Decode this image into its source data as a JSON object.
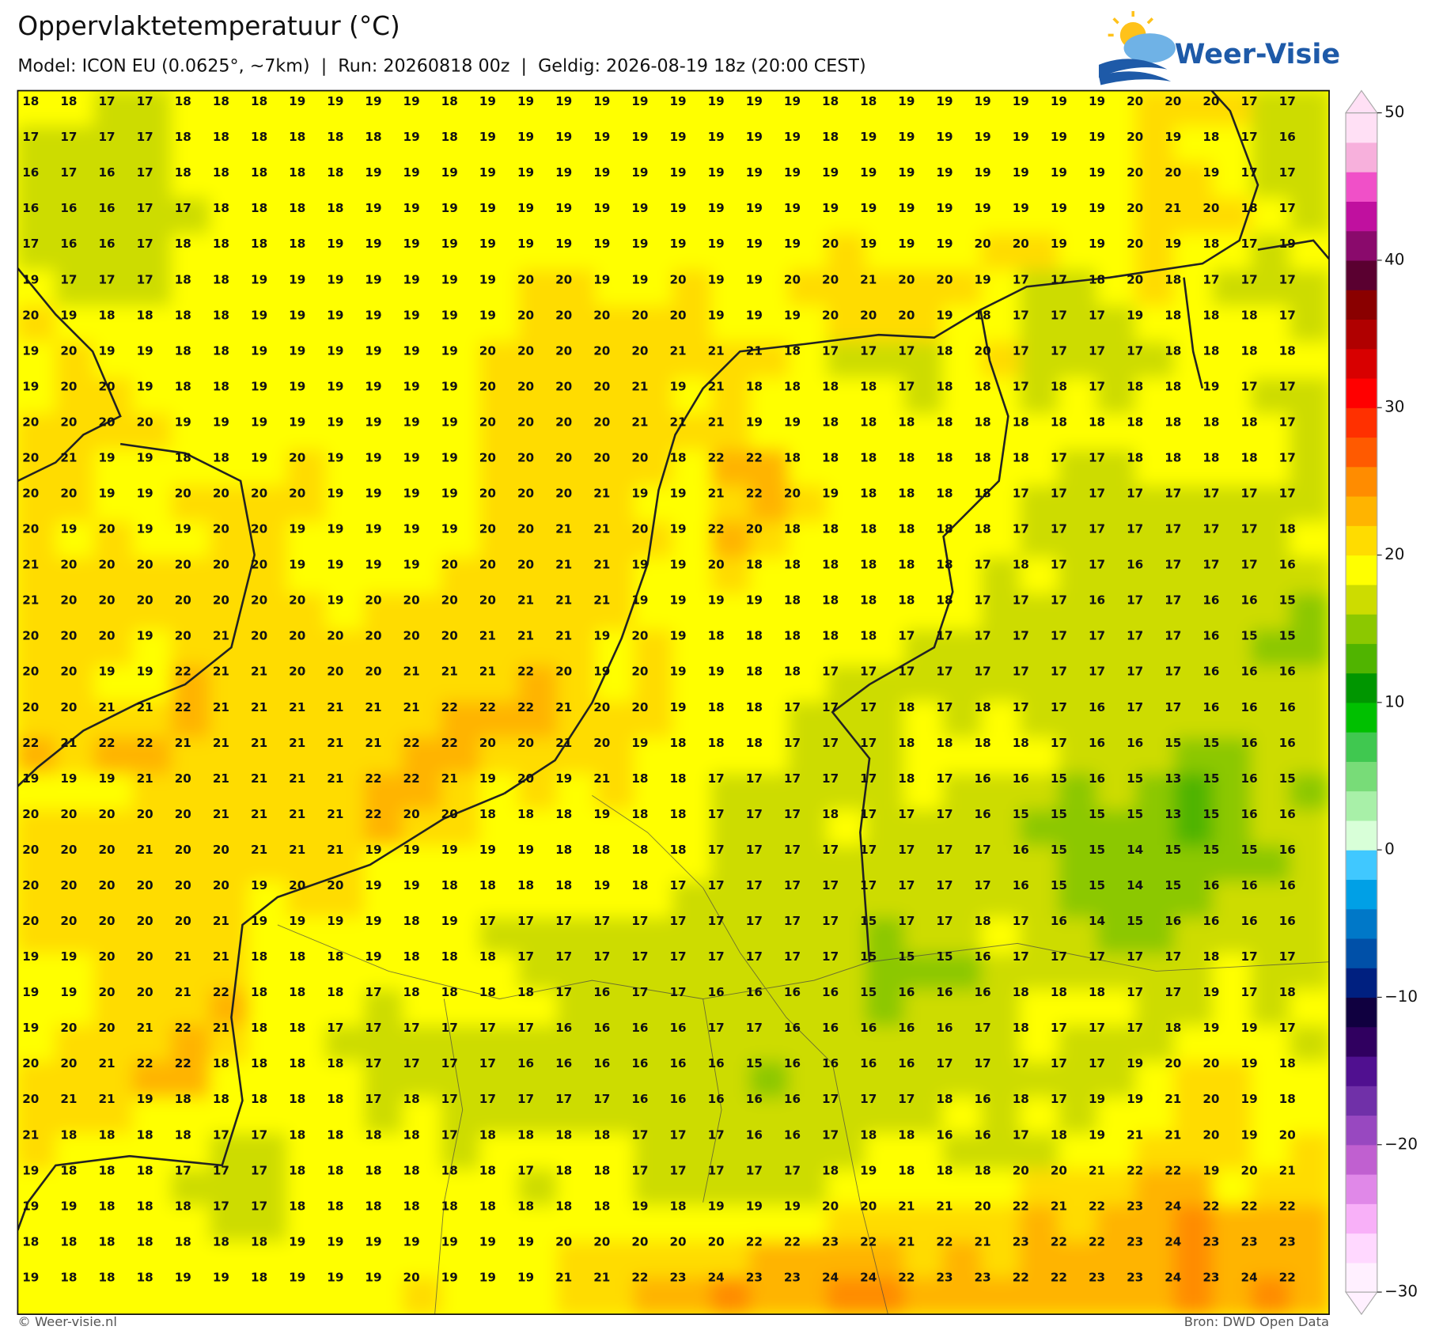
{
  "header": {
    "title": "Oppervlaktetemperatuur (°C)",
    "subtitle": "Model: ICON EU (0.0625°, ~7km)  |  Run: 20260818 00z  |  Geldig: 2026-08-19 18z (20:00 CEST)"
  },
  "logo": {
    "text": "Weer-Visie"
  },
  "map": {
    "grid": [
      [
        18,
        18,
        17,
        17,
        18,
        18,
        18,
        19,
        19,
        19,
        19,
        18,
        19,
        19,
        19,
        19,
        19,
        19,
        19,
        19,
        19,
        18,
        18,
        19,
        19,
        19,
        19,
        19,
        19,
        20,
        20,
        20,
        17,
        17
      ],
      [
        17,
        17,
        17,
        17,
        18,
        18,
        18,
        18,
        18,
        18,
        19,
        18,
        19,
        19,
        19,
        19,
        19,
        19,
        19,
        19,
        19,
        18,
        19,
        19,
        19,
        19,
        19,
        19,
        19,
        20,
        19,
        18,
        17,
        16
      ],
      [
        16,
        17,
        16,
        17,
        18,
        18,
        18,
        18,
        18,
        19,
        19,
        19,
        19,
        19,
        19,
        19,
        19,
        19,
        19,
        19,
        19,
        19,
        19,
        19,
        19,
        19,
        19,
        19,
        19,
        20,
        20,
        19,
        17,
        17
      ],
      [
        16,
        16,
        16,
        17,
        17,
        18,
        18,
        18,
        18,
        19,
        19,
        19,
        19,
        19,
        19,
        19,
        19,
        19,
        19,
        19,
        19,
        19,
        19,
        19,
        19,
        19,
        19,
        19,
        19,
        20,
        21,
        20,
        18,
        17
      ],
      [
        17,
        16,
        16,
        17,
        18,
        18,
        18,
        18,
        19,
        19,
        19,
        19,
        19,
        19,
        19,
        19,
        19,
        19,
        19,
        19,
        19,
        20,
        19,
        19,
        19,
        20,
        20,
        19,
        19,
        20,
        19,
        18,
        17,
        19
      ],
      [
        19,
        17,
        17,
        17,
        18,
        18,
        19,
        19,
        19,
        19,
        19,
        19,
        19,
        20,
        20,
        19,
        19,
        20,
        19,
        19,
        20,
        20,
        21,
        20,
        20,
        19,
        17,
        17,
        18,
        20,
        18,
        17,
        17,
        17
      ],
      [
        20,
        19,
        18,
        18,
        18,
        18,
        19,
        19,
        19,
        19,
        19,
        19,
        19,
        20,
        20,
        20,
        20,
        20,
        19,
        19,
        19,
        20,
        20,
        20,
        19,
        18,
        17,
        17,
        17,
        19,
        18,
        18,
        18,
        17
      ],
      [
        19,
        20,
        19,
        19,
        18,
        18,
        19,
        19,
        19,
        19,
        19,
        19,
        20,
        20,
        20,
        20,
        20,
        21,
        21,
        21,
        18,
        17,
        17,
        17,
        18,
        20,
        17,
        17,
        17,
        17,
        18,
        18,
        18,
        18
      ],
      [
        19,
        20,
        20,
        19,
        18,
        18,
        19,
        19,
        19,
        19,
        19,
        19,
        20,
        20,
        20,
        20,
        21,
        19,
        21,
        18,
        18,
        18,
        18,
        17,
        18,
        18,
        17,
        18,
        17,
        18,
        18,
        19,
        17,
        17
      ],
      [
        20,
        20,
        20,
        20,
        19,
        19,
        19,
        19,
        19,
        19,
        19,
        19,
        20,
        20,
        20,
        20,
        21,
        21,
        21,
        19,
        19,
        18,
        18,
        18,
        18,
        18,
        18,
        18,
        18,
        18,
        18,
        18,
        18,
        17
      ],
      [
        20,
        21,
        19,
        19,
        18,
        18,
        19,
        20,
        19,
        19,
        19,
        19,
        20,
        20,
        20,
        20,
        20,
        18,
        22,
        22,
        18,
        18,
        18,
        18,
        18,
        18,
        18,
        17,
        17,
        18,
        18,
        18,
        18,
        17
      ],
      [
        20,
        20,
        19,
        19,
        20,
        20,
        20,
        20,
        19,
        19,
        19,
        19,
        20,
        20,
        20,
        21,
        19,
        19,
        21,
        22,
        20,
        19,
        18,
        18,
        18,
        18,
        17,
        17,
        17,
        17,
        17,
        17,
        17,
        17
      ],
      [
        20,
        19,
        20,
        19,
        19,
        20,
        20,
        19,
        19,
        19,
        19,
        19,
        20,
        20,
        21,
        21,
        20,
        19,
        22,
        20,
        18,
        18,
        18,
        18,
        18,
        18,
        17,
        17,
        17,
        17,
        17,
        17,
        17,
        18
      ],
      [
        21,
        20,
        20,
        20,
        20,
        20,
        20,
        19,
        19,
        19,
        19,
        20,
        20,
        20,
        21,
        21,
        19,
        19,
        20,
        18,
        18,
        18,
        18,
        18,
        18,
        17,
        18,
        17,
        17,
        16,
        17,
        17,
        17,
        16
      ],
      [
        21,
        20,
        20,
        20,
        20,
        20,
        20,
        20,
        19,
        20,
        20,
        20,
        20,
        21,
        21,
        21,
        19,
        19,
        19,
        19,
        18,
        18,
        18,
        18,
        18,
        17,
        17,
        17,
        16,
        17,
        17,
        16,
        16,
        15
      ],
      [
        20,
        20,
        20,
        19,
        20,
        21,
        20,
        20,
        20,
        20,
        20,
        20,
        21,
        21,
        21,
        19,
        20,
        19,
        18,
        18,
        18,
        18,
        18,
        17,
        17,
        17,
        17,
        17,
        17,
        17,
        17,
        16,
        15,
        15
      ],
      [
        20,
        20,
        19,
        19,
        22,
        21,
        21,
        20,
        20,
        20,
        21,
        21,
        21,
        22,
        20,
        19,
        20,
        19,
        19,
        18,
        18,
        17,
        17,
        17,
        17,
        17,
        17,
        17,
        17,
        17,
        17,
        16,
        16,
        16
      ],
      [
        20,
        20,
        21,
        21,
        22,
        21,
        21,
        21,
        21,
        21,
        21,
        22,
        22,
        22,
        21,
        20,
        20,
        19,
        18,
        18,
        17,
        17,
        17,
        18,
        17,
        18,
        17,
        17,
        16,
        17,
        17,
        16,
        16,
        16
      ],
      [
        22,
        21,
        22,
        22,
        21,
        21,
        21,
        21,
        21,
        21,
        22,
        22,
        20,
        20,
        21,
        20,
        19,
        18,
        18,
        18,
        17,
        17,
        17,
        18,
        18,
        18,
        18,
        17,
        16,
        16,
        15,
        15,
        16,
        16
      ],
      [
        19,
        19,
        19,
        21,
        20,
        21,
        21,
        21,
        21,
        22,
        22,
        21,
        19,
        20,
        19,
        21,
        18,
        18,
        17,
        17,
        17,
        17,
        17,
        18,
        17,
        16,
        16,
        15,
        16,
        15,
        13,
        15,
        16,
        15
      ],
      [
        20,
        20,
        20,
        20,
        20,
        21,
        21,
        21,
        21,
        22,
        20,
        20,
        18,
        18,
        18,
        19,
        18,
        18,
        17,
        17,
        17,
        18,
        17,
        17,
        17,
        16,
        15,
        15,
        15,
        15,
        13,
        15,
        16,
        16
      ],
      [
        20,
        20,
        20,
        21,
        20,
        20,
        21,
        21,
        21,
        19,
        19,
        19,
        19,
        19,
        18,
        18,
        18,
        18,
        17,
        17,
        17,
        17,
        17,
        17,
        17,
        17,
        16,
        15,
        15,
        14,
        15,
        15,
        15,
        16
      ],
      [
        20,
        20,
        20,
        20,
        20,
        20,
        19,
        20,
        20,
        19,
        19,
        18,
        18,
        18,
        18,
        19,
        18,
        17,
        17,
        17,
        17,
        17,
        17,
        17,
        17,
        17,
        16,
        15,
        15,
        14,
        15,
        16,
        16,
        16
      ],
      [
        20,
        20,
        20,
        20,
        20,
        21,
        19,
        19,
        19,
        19,
        18,
        19,
        17,
        17,
        17,
        17,
        17,
        17,
        17,
        17,
        17,
        17,
        15,
        17,
        17,
        18,
        17,
        16,
        14,
        15,
        16,
        16,
        16,
        16
      ],
      [
        19,
        19,
        20,
        20,
        21,
        21,
        18,
        18,
        18,
        19,
        18,
        18,
        18,
        17,
        17,
        17,
        17,
        17,
        17,
        17,
        17,
        17,
        15,
        15,
        15,
        16,
        17,
        17,
        17,
        17,
        17,
        18,
        17,
        17
      ],
      [
        19,
        19,
        20,
        20,
        21,
        22,
        18,
        18,
        18,
        17,
        18,
        18,
        18,
        18,
        17,
        16,
        17,
        17,
        16,
        16,
        16,
        16,
        15,
        16,
        16,
        16,
        18,
        18,
        18,
        17,
        17,
        19,
        17,
        18
      ],
      [
        19,
        20,
        20,
        21,
        22,
        21,
        18,
        18,
        17,
        17,
        17,
        17,
        17,
        17,
        16,
        16,
        16,
        16,
        17,
        17,
        16,
        16,
        16,
        16,
        16,
        17,
        18,
        17,
        17,
        17,
        18,
        19,
        19,
        17
      ],
      [
        20,
        20,
        21,
        22,
        22,
        18,
        18,
        18,
        18,
        17,
        17,
        17,
        17,
        16,
        16,
        16,
        16,
        16,
        16,
        15,
        16,
        16,
        16,
        16,
        17,
        17,
        17,
        17,
        17,
        19,
        20,
        20,
        19,
        18
      ],
      [
        20,
        21,
        21,
        19,
        18,
        18,
        18,
        18,
        18,
        17,
        18,
        17,
        17,
        17,
        17,
        17,
        16,
        16,
        16,
        16,
        16,
        17,
        17,
        17,
        18,
        16,
        18,
        17,
        19,
        19,
        21,
        20,
        19,
        18
      ],
      [
        21,
        18,
        18,
        18,
        18,
        17,
        17,
        18,
        18,
        18,
        18,
        17,
        18,
        18,
        18,
        18,
        17,
        17,
        17,
        16,
        16,
        17,
        18,
        18,
        16,
        16,
        17,
        18,
        19,
        21,
        21,
        20,
        19,
        20
      ],
      [
        19,
        18,
        18,
        18,
        17,
        17,
        17,
        18,
        18,
        18,
        18,
        18,
        18,
        17,
        18,
        18,
        17,
        17,
        17,
        17,
        17,
        18,
        19,
        18,
        18,
        18,
        20,
        20,
        21,
        22,
        22,
        19,
        20,
        21
      ],
      [
        19,
        19,
        18,
        18,
        18,
        17,
        17,
        18,
        18,
        18,
        18,
        18,
        18,
        18,
        18,
        18,
        19,
        18,
        19,
        19,
        19,
        20,
        20,
        21,
        21,
        20,
        22,
        21,
        22,
        23,
        24,
        22,
        22,
        22
      ],
      [
        18,
        18,
        18,
        18,
        18,
        18,
        18,
        19,
        19,
        19,
        19,
        19,
        19,
        19,
        20,
        20,
        20,
        20,
        20,
        22,
        22,
        23,
        22,
        21,
        22,
        21,
        23,
        22,
        22,
        23,
        24,
        23,
        23,
        23
      ],
      [
        19,
        18,
        18,
        18,
        19,
        19,
        18,
        19,
        19,
        19,
        20,
        19,
        19,
        19,
        21,
        21,
        22,
        23,
        24,
        23,
        23,
        24,
        24,
        22,
        23,
        23,
        22,
        22,
        23,
        23,
        24,
        23,
        24,
        22
      ]
    ]
  },
  "colorbar": {
    "range": [
      -30,
      50
    ],
    "step": 2,
    "colors": [
      "#fff0ff",
      "#ffd8ff",
      "#f8b0f8",
      "#e088e8",
      "#c060d0",
      "#9848c0",
      "#7030a8",
      "#501090",
      "#300060",
      "#100040",
      "#002080",
      "#0050a8",
      "#0078c8",
      "#00a0e6",
      "#40c8ff",
      "#d8ffd8",
      "#a8f0a8",
      "#78dc78",
      "#40c850",
      "#00c000",
      "#009600",
      "#50b400",
      "#8cc800",
      "#cddc00",
      "#ffff00",
      "#ffdc00",
      "#ffb400",
      "#ff8c00",
      "#ff5a00",
      "#ff3000",
      "#ff0000",
      "#d80000",
      "#b00000",
      "#8a0000",
      "#5a0030",
      "#8a0a6c",
      "#c0109f",
      "#f050c8",
      "#f7b0dc",
      "#ffe0f5"
    ],
    "ticks": [
      {
        "value": -30,
        "label": "−30"
      },
      {
        "value": -20,
        "label": "−20"
      },
      {
        "value": -10,
        "label": "−10"
      },
      0,
      10,
      20,
      30,
      40,
      50
    ]
  },
  "footer": {
    "left": "© Weer-visie.nl",
    "right": "Bron: DWD Open Data"
  }
}
